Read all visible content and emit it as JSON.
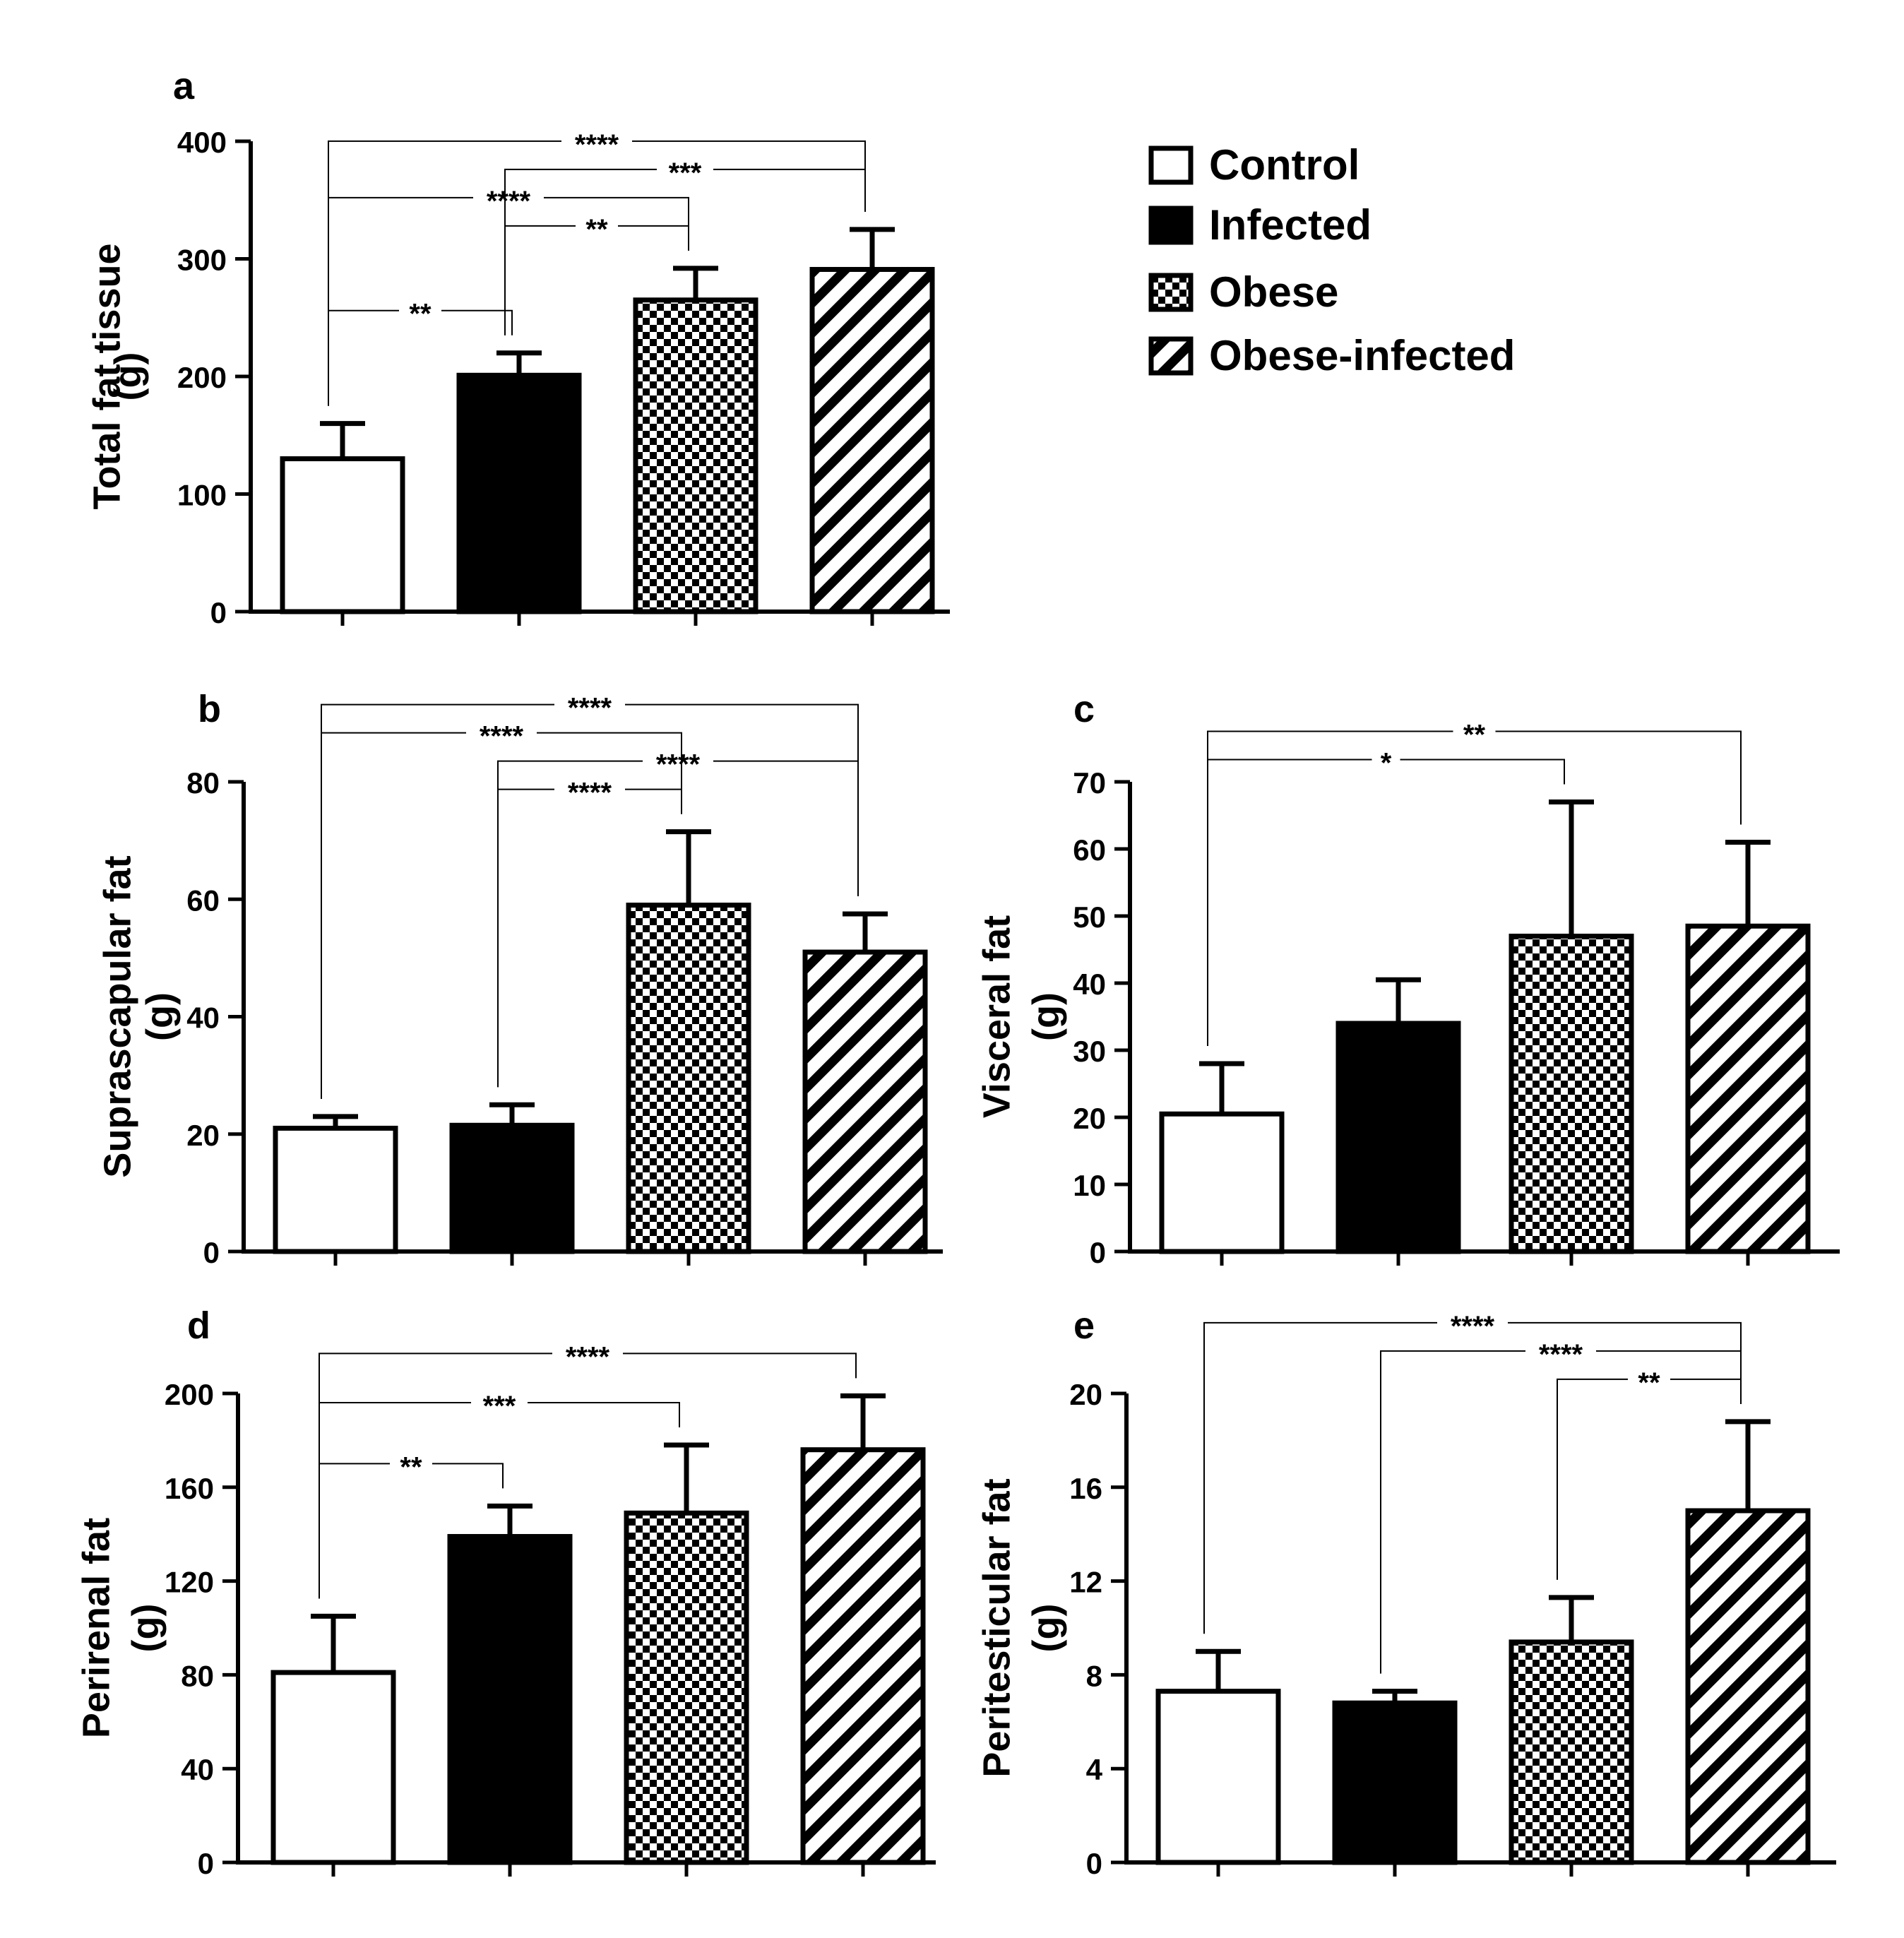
{
  "legend": [
    {
      "label": "Control",
      "pattern": "none"
    },
    {
      "label": "Infected",
      "pattern": "solid"
    },
    {
      "label": "Obese",
      "pattern": "checker"
    },
    {
      "label": "Obese-infected",
      "pattern": "stripes"
    }
  ],
  "chart_data": [
    {
      "panel": "a",
      "type": "bar",
      "ylabel": [
        "Total fat tissue",
        "(g)"
      ],
      "ylim": [
        0,
        400
      ],
      "yticks": [
        0,
        100,
        200,
        300,
        400
      ],
      "categories": [
        "Control",
        "Infected",
        "Obese",
        "Obese-infected"
      ],
      "values": [
        130,
        201,
        265,
        291
      ],
      "errors": [
        30,
        19,
        27,
        34
      ],
      "significance": [
        {
          "from": 0,
          "to": 3,
          "label": "****"
        },
        {
          "from": 0,
          "to": 2,
          "label": "****"
        },
        {
          "from": 1,
          "to": 3,
          "label": "***"
        },
        {
          "from": 0,
          "to": 1,
          "label": "**"
        },
        {
          "from": 1,
          "to": 2,
          "label": "**"
        }
      ]
    },
    {
      "panel": "b",
      "type": "bar",
      "ylabel": [
        "Suprascapular fat",
        "(g)"
      ],
      "ylim": [
        0,
        80
      ],
      "yticks": [
        0,
        20,
        40,
        60,
        80
      ],
      "categories": [
        "Control",
        "Infected",
        "Obese",
        "Obese-infected"
      ],
      "values": [
        21,
        21.5,
        59,
        51
      ],
      "errors": [
        2,
        3.5,
        12.5,
        6.5
      ],
      "significance": [
        {
          "from": 0,
          "to": 3,
          "label": "****"
        },
        {
          "from": 1,
          "to": 3,
          "label": "****"
        },
        {
          "from": 0,
          "to": 2,
          "label": "****"
        },
        {
          "from": 1,
          "to": 2,
          "label": "****"
        }
      ]
    },
    {
      "panel": "c",
      "type": "bar",
      "ylabel": [
        "Visceral fat",
        "(g)"
      ],
      "ylim": [
        0,
        70
      ],
      "yticks": [
        0,
        10,
        20,
        30,
        40,
        50,
        60,
        70
      ],
      "categories": [
        "Control",
        "Infected",
        "Obese",
        "Obese-infected"
      ],
      "values": [
        20.5,
        34,
        47,
        48.5
      ],
      "errors": [
        7.5,
        6.5,
        20,
        12.5
      ],
      "significance": [
        {
          "from": 0,
          "to": 3,
          "label": "**"
        },
        {
          "from": 0,
          "to": 2,
          "label": "*"
        }
      ]
    },
    {
      "panel": "d",
      "type": "bar",
      "ylabel": [
        "Perirenal fat",
        "(g)"
      ],
      "ylim": [
        0,
        200
      ],
      "yticks": [
        0,
        40,
        80,
        120,
        160,
        200
      ],
      "categories": [
        "Control",
        "Infected",
        "Obese",
        "Obese-infected"
      ],
      "values": [
        81,
        139,
        149,
        176
      ],
      "errors": [
        24,
        13,
        29,
        23
      ],
      "significance": [
        {
          "from": 0,
          "to": 3,
          "label": "****"
        },
        {
          "from": 0,
          "to": 2,
          "label": "***"
        },
        {
          "from": 0,
          "to": 1,
          "label": "**"
        }
      ]
    },
    {
      "panel": "e",
      "type": "bar",
      "ylabel": [
        "Peritesticular fat",
        "(g)"
      ],
      "ylim": [
        0,
        20
      ],
      "yticks": [
        0,
        4,
        8,
        12,
        16,
        20
      ],
      "categories": [
        "Control",
        "Infected",
        "Obese",
        "Obese-infected"
      ],
      "values": [
        7.3,
        6.8,
        9.4,
        15
      ],
      "errors": [
        1.7,
        0.5,
        1.9,
        3.8
      ],
      "significance": [
        {
          "from": 0,
          "to": 3,
          "label": "****"
        },
        {
          "from": 1,
          "to": 3,
          "label": "****"
        },
        {
          "from": 2,
          "to": 3,
          "label": "**"
        }
      ]
    }
  ]
}
